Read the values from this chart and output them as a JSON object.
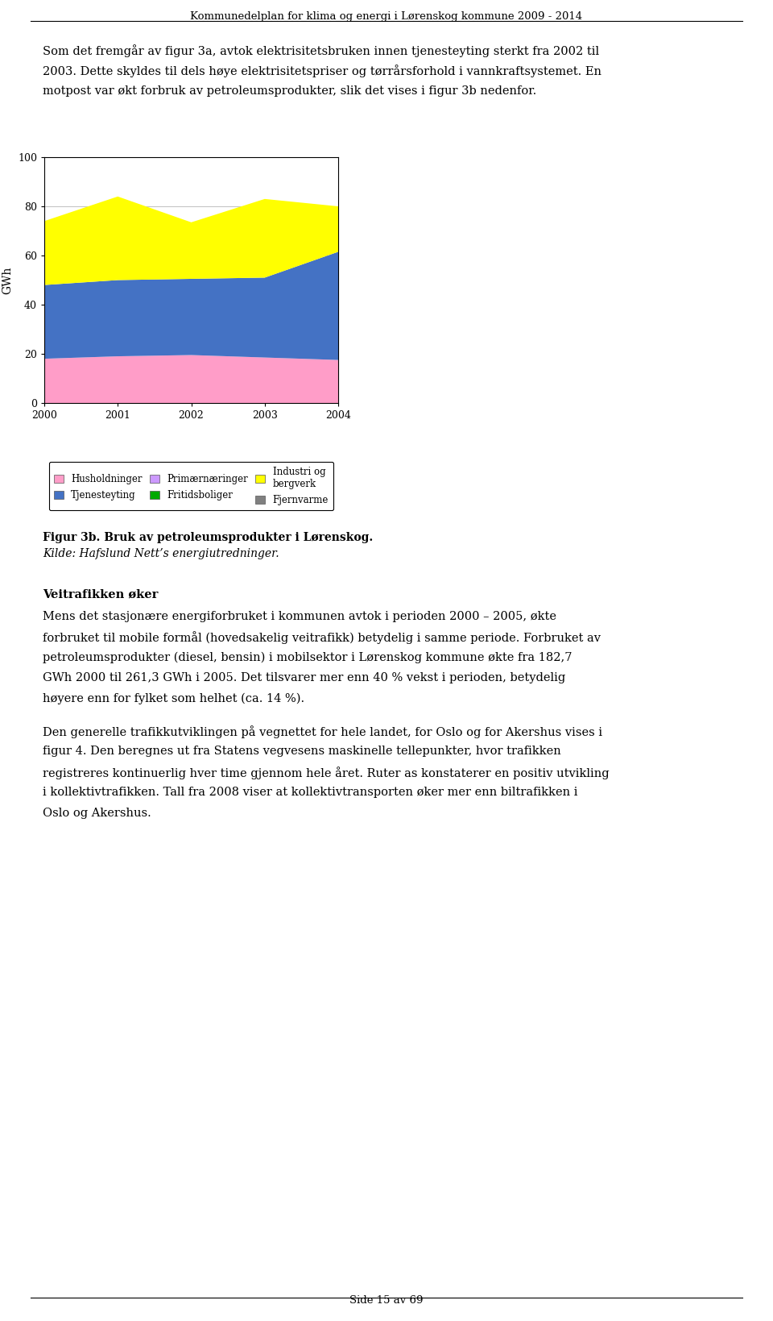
{
  "header": "Kommunedelplan for klima og energi i Lørenskog kommune 2009 - 2014",
  "page_footer": "Side 15 av 69",
  "intro_text_lines": [
    "Som det fremgår av figur 3a, avtok elektrisitetsbruken innen tjenesteyting sterkt fra 2002 til",
    "2003. Dette skyldes til dels høye elektrisitetspriser og tørrårsforhold i vannkraftsystemet. En",
    "motpost var økt forbruk av petroleumsprodukter, slik det vises i figur 3b nedenfor."
  ],
  "years": [
    2000,
    2001,
    2002,
    2003,
    2004
  ],
  "husholdninger": [
    18.0,
    19.0,
    19.5,
    18.5,
    17.5
  ],
  "tjenesteyting": [
    30.0,
    31.0,
    31.0,
    32.5,
    44.0
  ],
  "industri": [
    26.0,
    34.0,
    23.0,
    32.0,
    18.5
  ],
  "colors": {
    "husholdninger": "#FF9DC8",
    "tjenesteyting": "#4472C4",
    "industri": "#FFFF00",
    "fritidsboliger": "#00AA00",
    "primaernaringer": "#CC99FF",
    "fjernvarme": "#808080"
  },
  "ylabel": "GWh",
  "ylim": [
    0,
    100
  ],
  "yticks": [
    0,
    20,
    40,
    60,
    80,
    100
  ],
  "legend_labels": [
    "Husholdninger",
    "Tjenesteyting",
    "Primærnæringer",
    "Fritidsboliger",
    "Industri og\nbergverk",
    "Fjernvarme"
  ],
  "legend_colors": [
    "#FF9DC8",
    "#4472C4",
    "#CC99FF",
    "#00AA00",
    "#FFFF00",
    "#808080"
  ],
  "fig_caption_bold": "Figur 3b. Bruk av petroleumsprodukter i Lørenskog.",
  "fig_caption_italic": "Kilde: Hafslund Nett’s energiutredninger.",
  "section_heading": "Veitrafikken øker",
  "body_text_1_lines": [
    "Mens det stasjonære energiforbruket i kommunen avtok i perioden 2000 – 2005, økte",
    "forbruket til mobile formål (hovedsakelig veitrafikk) betydelig i samme periode. Forbruket av",
    "petroleumsprodukter (diesel, bensin) i mobilsektor i Lørenskog kommune økte fra 182,7",
    "GWh 2000 til 261,3 GWh i 2005. Det tilsvarer mer enn 40 % vekst i perioden, betydelig",
    "høyere enn for fylket som helhet (ca. 14 %)."
  ],
  "body_text_2_lines": [
    "Den generelle trafikkutviklingen på vegnettet for hele landet, for Oslo og for Akershus vises i",
    "figur 4. Den beregnes ut fra Statens vegvesens maskinelle tellepunkter, hvor trafikken",
    "registreres kontinuerlig hver time gjennom hele året. Ruter as konstaterer en positiv utvikling",
    "i kollektivtrafikken. Tall fra 2008 viser at kollektivtransporten øker mer enn biltrafikken i",
    "Oslo og Akershus."
  ]
}
